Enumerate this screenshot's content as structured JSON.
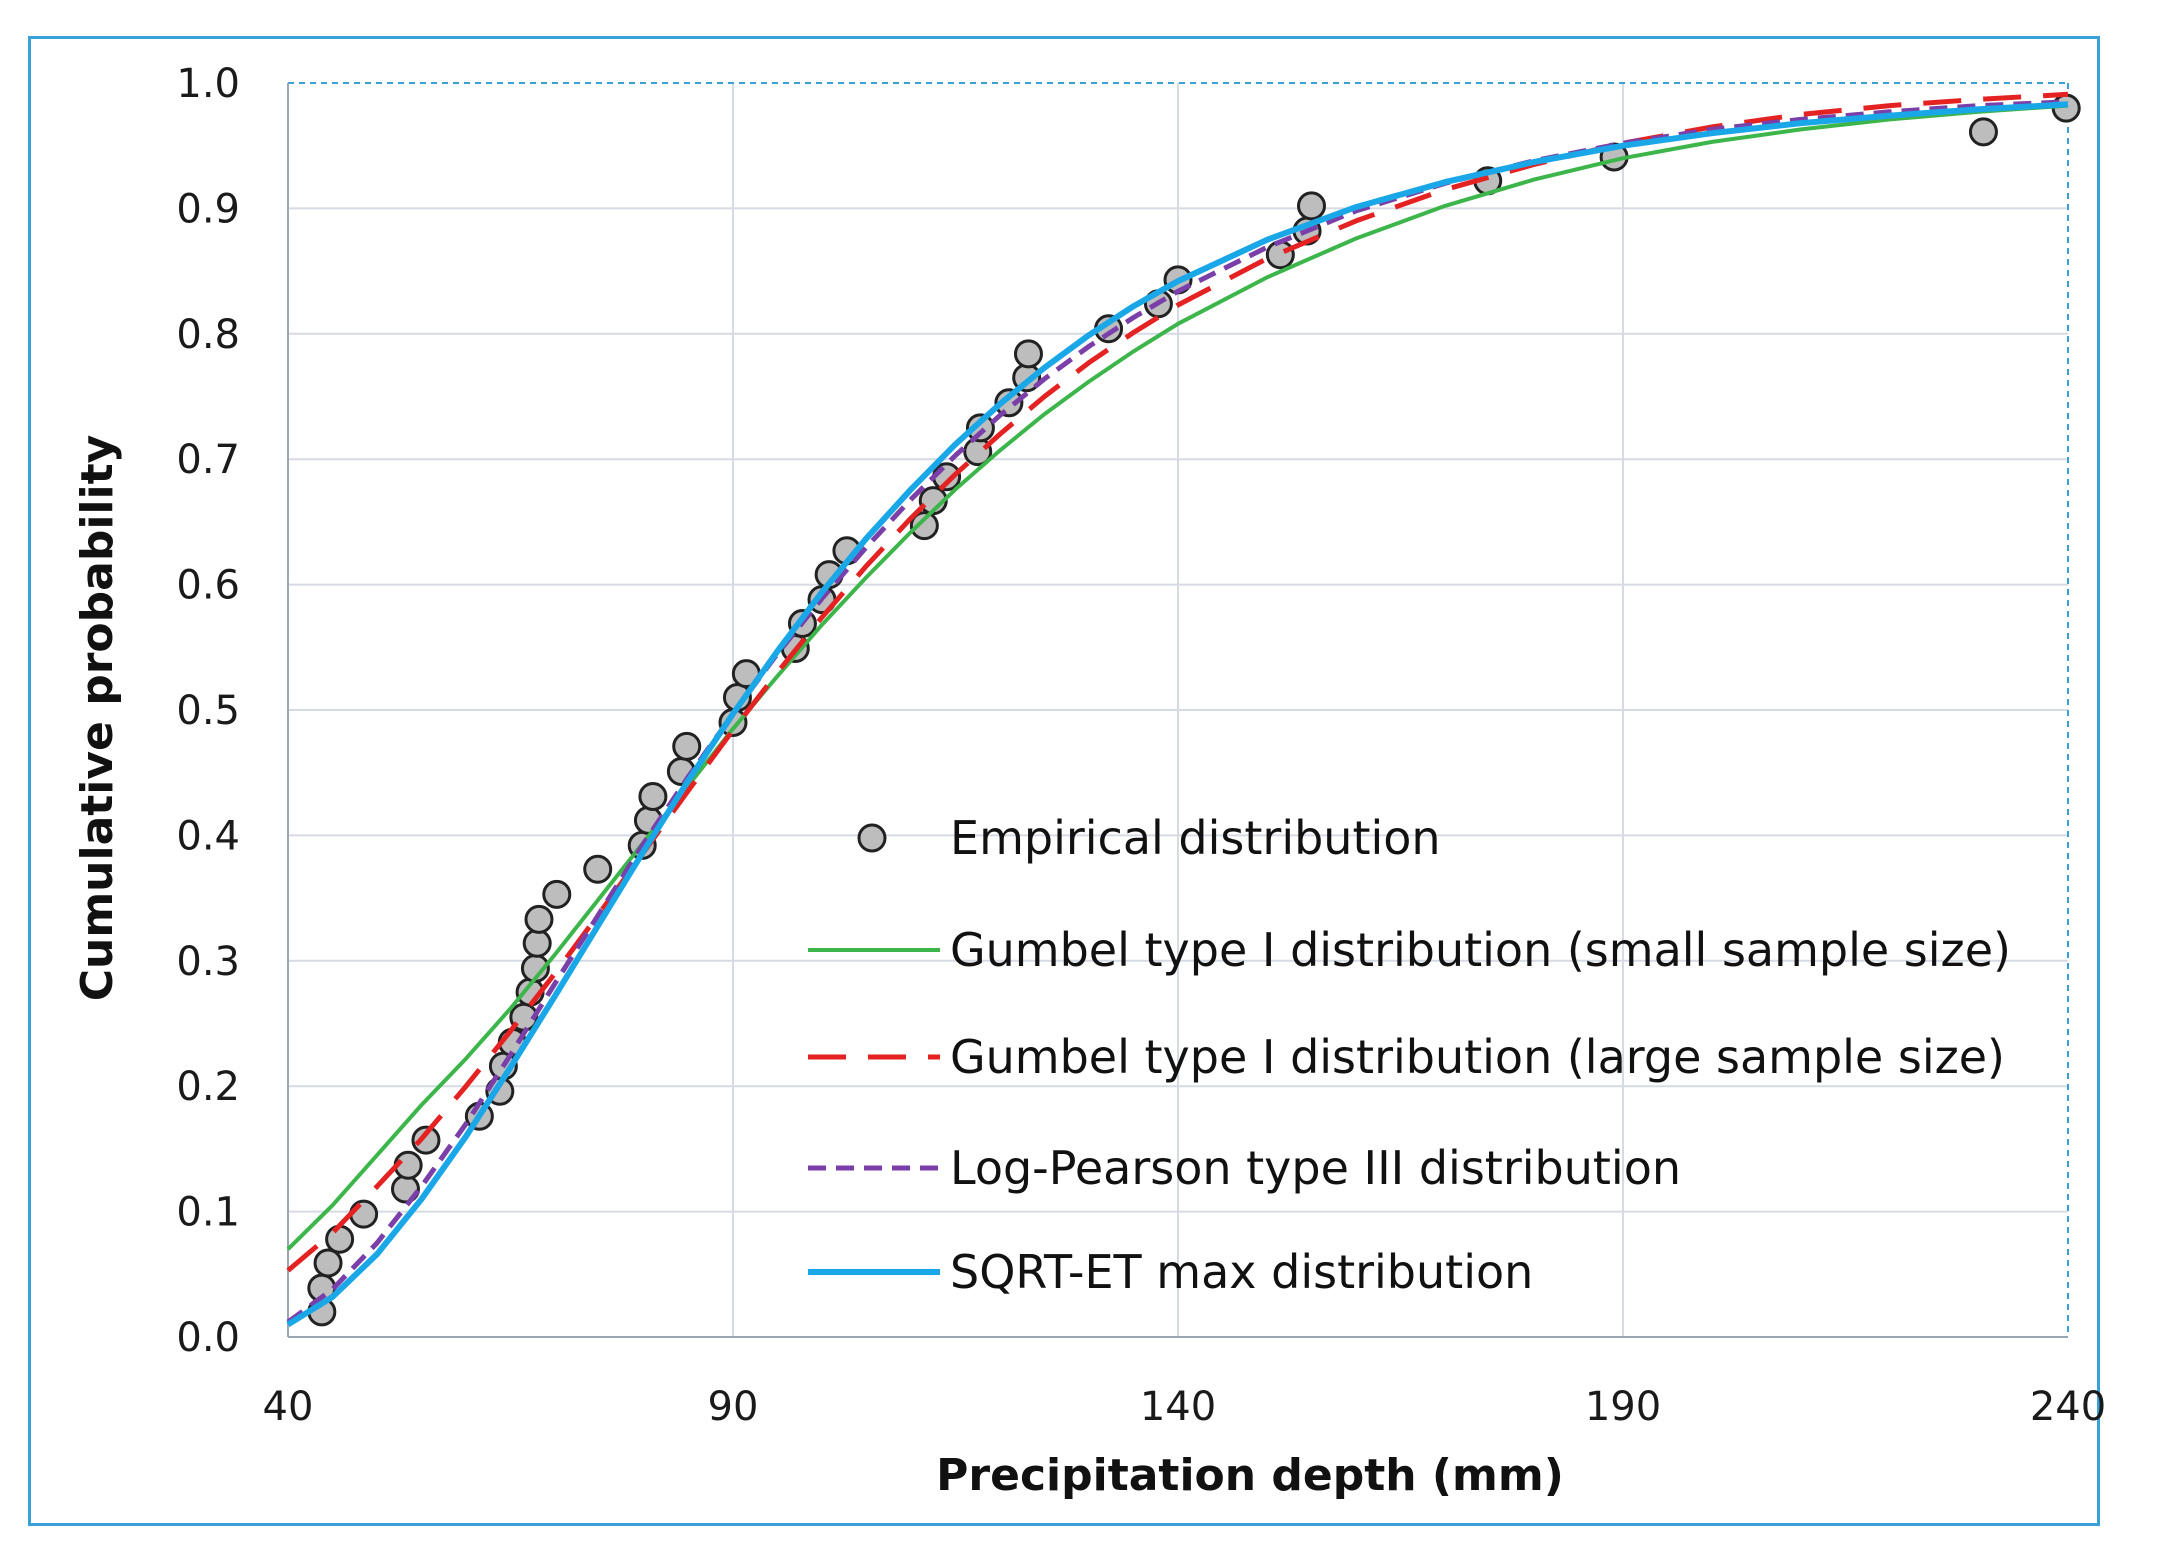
{
  "chart_data": {
    "type": "line",
    "xlabel": "Precipitation depth (mm)",
    "ylabel": "Cumulative probability",
    "xlim": [
      40,
      240
    ],
    "ylim": [
      0.0,
      1.0
    ],
    "x_ticks": [
      "40",
      "90",
      "140",
      "190",
      "240"
    ],
    "y_ticks": [
      "0.0",
      "0.1",
      "0.2",
      "0.3",
      "0.4",
      "0.5",
      "0.6",
      "0.7",
      "0.8",
      "0.9",
      "1.0"
    ],
    "grid": true,
    "legend_position": "center-right",
    "series": [
      {
        "name": "Empirical distribution",
        "kind": "scatter",
        "color": "#bdbdbd",
        "edge_color": "#222222",
        "points": [
          [
            43.8,
            0.02
          ],
          [
            43.8,
            0.039
          ],
          [
            44.5,
            0.059
          ],
          [
            45.8,
            0.078
          ],
          [
            48.5,
            0.098
          ],
          [
            53.2,
            0.118
          ],
          [
            53.5,
            0.137
          ],
          [
            55.5,
            0.157
          ],
          [
            61.5,
            0.176
          ],
          [
            63.8,
            0.196
          ],
          [
            64.2,
            0.216
          ],
          [
            65.2,
            0.235
          ],
          [
            66.5,
            0.255
          ],
          [
            67.2,
            0.275
          ],
          [
            67.8,
            0.294
          ],
          [
            68.0,
            0.314
          ],
          [
            68.2,
            0.333
          ],
          [
            70.2,
            0.353
          ],
          [
            74.8,
            0.373
          ],
          [
            79.8,
            0.392
          ],
          [
            80.5,
            0.412
          ],
          [
            81.0,
            0.431
          ],
          [
            84.2,
            0.451
          ],
          [
            84.8,
            0.471
          ],
          [
            90.0,
            0.49
          ],
          [
            90.5,
            0.51
          ],
          [
            91.5,
            0.529
          ],
          [
            97.0,
            0.549
          ],
          [
            97.8,
            0.569
          ],
          [
            100.0,
            0.588
          ],
          [
            100.8,
            0.608
          ],
          [
            102.8,
            0.627
          ],
          [
            111.5,
            0.647
          ],
          [
            112.5,
            0.667
          ],
          [
            114.0,
            0.686
          ],
          [
            117.5,
            0.706
          ],
          [
            117.8,
            0.725
          ],
          [
            121.0,
            0.745
          ],
          [
            123.0,
            0.765
          ],
          [
            123.2,
            0.784
          ],
          [
            132.2,
            0.804
          ],
          [
            137.8,
            0.824
          ],
          [
            140.0,
            0.843
          ],
          [
            151.5,
            0.863
          ],
          [
            154.5,
            0.882
          ],
          [
            155.0,
            0.902
          ],
          [
            174.8,
            0.922
          ],
          [
            189.0,
            0.941
          ],
          [
            230.5,
            0.961
          ],
          [
            239.8,
            0.98
          ]
        ]
      },
      {
        "name": "Gumbel type I distribution (small sample size)",
        "kind": "line",
        "color": "#3cb54a",
        "dash": "solid",
        "points": [
          [
            40,
            0.07
          ],
          [
            45,
            0.105
          ],
          [
            50,
            0.145
          ],
          [
            55,
            0.185
          ],
          [
            60,
            0.222
          ],
          [
            65,
            0.262
          ],
          [
            70,
            0.305
          ],
          [
            75,
            0.35
          ],
          [
            80,
            0.395
          ],
          [
            85,
            0.44
          ],
          [
            90,
            0.485
          ],
          [
            95,
            0.527
          ],
          [
            100,
            0.568
          ],
          [
            105,
            0.606
          ],
          [
            110,
            0.642
          ],
          [
            115,
            0.676
          ],
          [
            120,
            0.707
          ],
          [
            125,
            0.736
          ],
          [
            130,
            0.762
          ],
          [
            135,
            0.786
          ],
          [
            140,
            0.808
          ],
          [
            150,
            0.845
          ],
          [
            160,
            0.876
          ],
          [
            170,
            0.902
          ],
          [
            180,
            0.923
          ],
          [
            190,
            0.94
          ],
          [
            200,
            0.953
          ],
          [
            210,
            0.963
          ],
          [
            220,
            0.971
          ],
          [
            230,
            0.977
          ],
          [
            240,
            0.982
          ]
        ]
      },
      {
        "name": "Gumbel type I distribution (large sample size)",
        "kind": "line",
        "color": "#e52222",
        "dash": "long-dash",
        "points": [
          [
            40,
            0.053
          ],
          [
            45,
            0.083
          ],
          [
            50,
            0.12
          ],
          [
            55,
            0.158
          ],
          [
            60,
            0.2
          ],
          [
            65,
            0.244
          ],
          [
            70,
            0.29
          ],
          [
            75,
            0.338
          ],
          [
            80,
            0.387
          ],
          [
            85,
            0.436
          ],
          [
            90,
            0.484
          ],
          [
            95,
            0.53
          ],
          [
            100,
            0.574
          ],
          [
            105,
            0.615
          ],
          [
            110,
            0.653
          ],
          [
            115,
            0.688
          ],
          [
            120,
            0.72
          ],
          [
            125,
            0.75
          ],
          [
            130,
            0.777
          ],
          [
            135,
            0.801
          ],
          [
            140,
            0.823
          ],
          [
            150,
            0.86
          ],
          [
            160,
            0.89
          ],
          [
            170,
            0.915
          ],
          [
            180,
            0.935
          ],
          [
            190,
            0.952
          ],
          [
            200,
            0.965
          ],
          [
            210,
            0.975
          ],
          [
            220,
            0.982
          ],
          [
            230,
            0.987
          ],
          [
            240,
            0.991
          ]
        ]
      },
      {
        "name": "Log-Pearson type III distribution",
        "kind": "line",
        "color": "#7a3fa8",
        "dash": "short-dash",
        "points": [
          [
            40,
            0.012
          ],
          [
            45,
            0.038
          ],
          [
            50,
            0.075
          ],
          [
            55,
            0.12
          ],
          [
            60,
            0.17
          ],
          [
            65,
            0.225
          ],
          [
            70,
            0.282
          ],
          [
            75,
            0.338
          ],
          [
            80,
            0.394
          ],
          [
            85,
            0.447
          ],
          [
            90,
            0.497
          ],
          [
            95,
            0.545
          ],
          [
            100,
            0.589
          ],
          [
            105,
            0.63
          ],
          [
            110,
            0.668
          ],
          [
            115,
            0.703
          ],
          [
            120,
            0.735
          ],
          [
            125,
            0.764
          ],
          [
            130,
            0.79
          ],
          [
            135,
            0.813
          ],
          [
            140,
            0.834
          ],
          [
            150,
            0.869
          ],
          [
            160,
            0.898
          ],
          [
            170,
            0.92
          ],
          [
            180,
            0.938
          ],
          [
            190,
            0.952
          ],
          [
            200,
            0.963
          ],
          [
            210,
            0.971
          ],
          [
            220,
            0.977
          ],
          [
            230,
            0.982
          ],
          [
            240,
            0.985
          ]
        ]
      },
      {
        "name": "SQRT-ET max distribution",
        "kind": "line",
        "color": "#1aa7e8",
        "dash": "solid",
        "points": [
          [
            40,
            0.01
          ],
          [
            45,
            0.032
          ],
          [
            50,
            0.066
          ],
          [
            55,
            0.11
          ],
          [
            60,
            0.16
          ],
          [
            65,
            0.215
          ],
          [
            70,
            0.272
          ],
          [
            75,
            0.33
          ],
          [
            80,
            0.388
          ],
          [
            85,
            0.444
          ],
          [
            90,
            0.497
          ],
          [
            95,
            0.547
          ],
          [
            100,
            0.594
          ],
          [
            105,
            0.637
          ],
          [
            110,
            0.676
          ],
          [
            115,
            0.712
          ],
          [
            120,
            0.744
          ],
          [
            125,
            0.773
          ],
          [
            130,
            0.799
          ],
          [
            135,
            0.822
          ],
          [
            140,
            0.842
          ],
          [
            150,
            0.875
          ],
          [
            160,
            0.901
          ],
          [
            170,
            0.921
          ],
          [
            180,
            0.937
          ],
          [
            190,
            0.95
          ],
          [
            200,
            0.96
          ],
          [
            210,
            0.968
          ],
          [
            220,
            0.974
          ],
          [
            230,
            0.979
          ],
          [
            240,
            0.983
          ]
        ]
      }
    ]
  }
}
